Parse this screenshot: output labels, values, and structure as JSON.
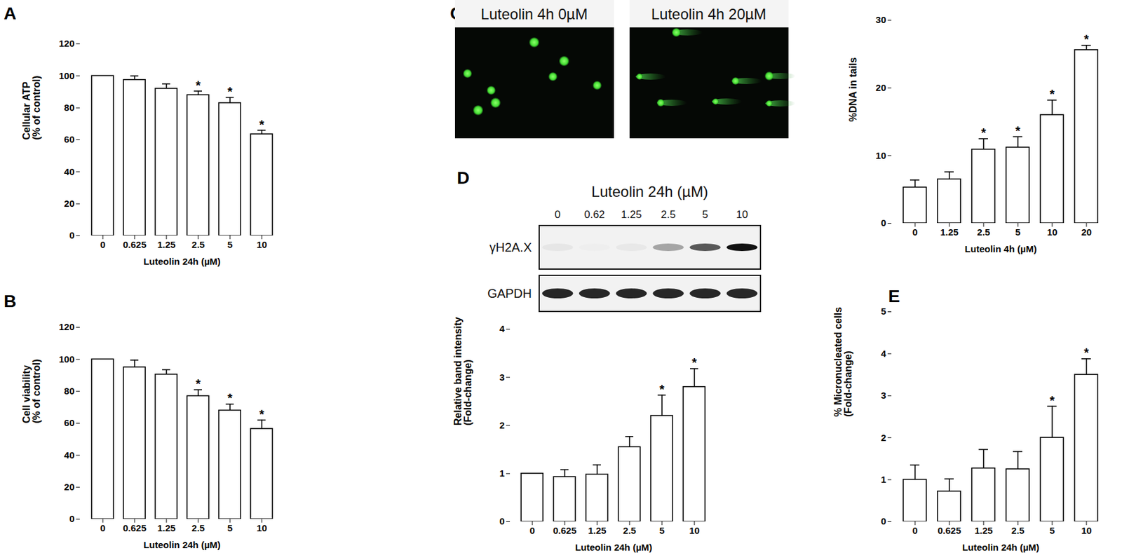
{
  "chart_data": [
    {
      "panel": "A",
      "type": "bar",
      "categories": [
        "0",
        "0.625",
        "1.25",
        "2.5",
        "5",
        "10"
      ],
      "values": [
        100,
        97.5,
        92,
        88,
        83,
        63.5
      ],
      "error": [
        null,
        2.5,
        3,
        2.5,
        3.5,
        2.5
      ],
      "significance": [
        null,
        null,
        null,
        "*",
        "*",
        "*"
      ],
      "y_label": "Cellular ATP\n(% of control)",
      "x_label": "Luteolin 24h (µM)",
      "ylim": [
        0,
        120
      ],
      "yticks": [
        0,
        20,
        40,
        60,
        80,
        100,
        120
      ],
      "color": "#ffffff"
    },
    {
      "panel": "B",
      "type": "bar",
      "categories": [
        "0",
        "0.625",
        "1.25",
        "2.5",
        "5",
        "10"
      ],
      "values": [
        100,
        95,
        90.5,
        77,
        68,
        56.5
      ],
      "error": [
        null,
        4.5,
        3,
        4,
        4,
        5.5
      ],
      "significance": [
        null,
        null,
        null,
        "*",
        "*",
        "*"
      ],
      "y_label": "Cell viability\n(% of control)",
      "x_label": "Luteolin 24h (µM)",
      "ylim": [
        0,
        120
      ],
      "yticks": [
        0,
        20,
        40,
        60,
        80,
        100,
        120
      ],
      "color": "#ffffff"
    },
    {
      "type": "bar",
      "categories": [
        "0",
        "1.25",
        "2.5",
        "5",
        "10",
        "20"
      ],
      "values": [
        5.3,
        6.5,
        10.9,
        11.2,
        16,
        25.6
      ],
      "error": [
        1.1,
        1.1,
        1.6,
        1.6,
        2.2,
        0.7
      ],
      "significance": [
        null,
        null,
        "*",
        "*",
        "*",
        "*"
      ],
      "y_label": "%DNA in tails",
      "x_label": "Luteolin 4h (µM)",
      "ylim": [
        0,
        30
      ],
      "yticks": [
        0,
        10,
        20,
        30
      ],
      "color": "#ffffff"
    },
    {
      "type": "bar",
      "categories": [
        "0",
        "0.625",
        "1.25",
        "2.5",
        "5",
        "10"
      ],
      "values": [
        1,
        0.93,
        0.98,
        1.55,
        2.2,
        2.8
      ],
      "error": [
        null,
        0.15,
        0.2,
        0.22,
        0.43,
        0.38
      ],
      "significance": [
        null,
        null,
        null,
        null,
        "*",
        "*"
      ],
      "y_label": "Relative band intensity\n(Fold-change)",
      "x_label": "Luteolin 24h (µM)",
      "ylim": [
        0,
        4
      ],
      "yticks": [
        0,
        1,
        2,
        3,
        4
      ],
      "color": "#ffffff"
    },
    {
      "panel": "E",
      "type": "bar",
      "categories": [
        "0",
        "0.625",
        "1.25",
        "2.5",
        "5",
        "10"
      ],
      "values": [
        1,
        0.72,
        1.27,
        1.25,
        2,
        3.5
      ],
      "error": [
        0.35,
        0.3,
        0.45,
        0.42,
        0.75,
        0.38
      ],
      "significance": [
        null,
        null,
        null,
        null,
        "*",
        "*"
      ],
      "y_label": "% Micronucleated cells\n(Fold-change)",
      "x_label": "Luteolin 24h (µM)",
      "ylim": [
        0,
        5
      ],
      "yticks": [
        0,
        1,
        2,
        3,
        4,
        5
      ],
      "color": "#ffffff"
    }
  ],
  "comet_images": {
    "panel": "C",
    "labels": [
      "Luteolin 4h 0µM",
      "Luteolin 4h 20µM"
    ]
  },
  "western_blot": {
    "panel": "D",
    "title": "Luteolin 24h (µM)",
    "lanes": [
      "0",
      "0.62",
      "1.25",
      "2.5",
      "5",
      "10"
    ],
    "rows": [
      "γH2A.X",
      "GAPDH"
    ]
  }
}
